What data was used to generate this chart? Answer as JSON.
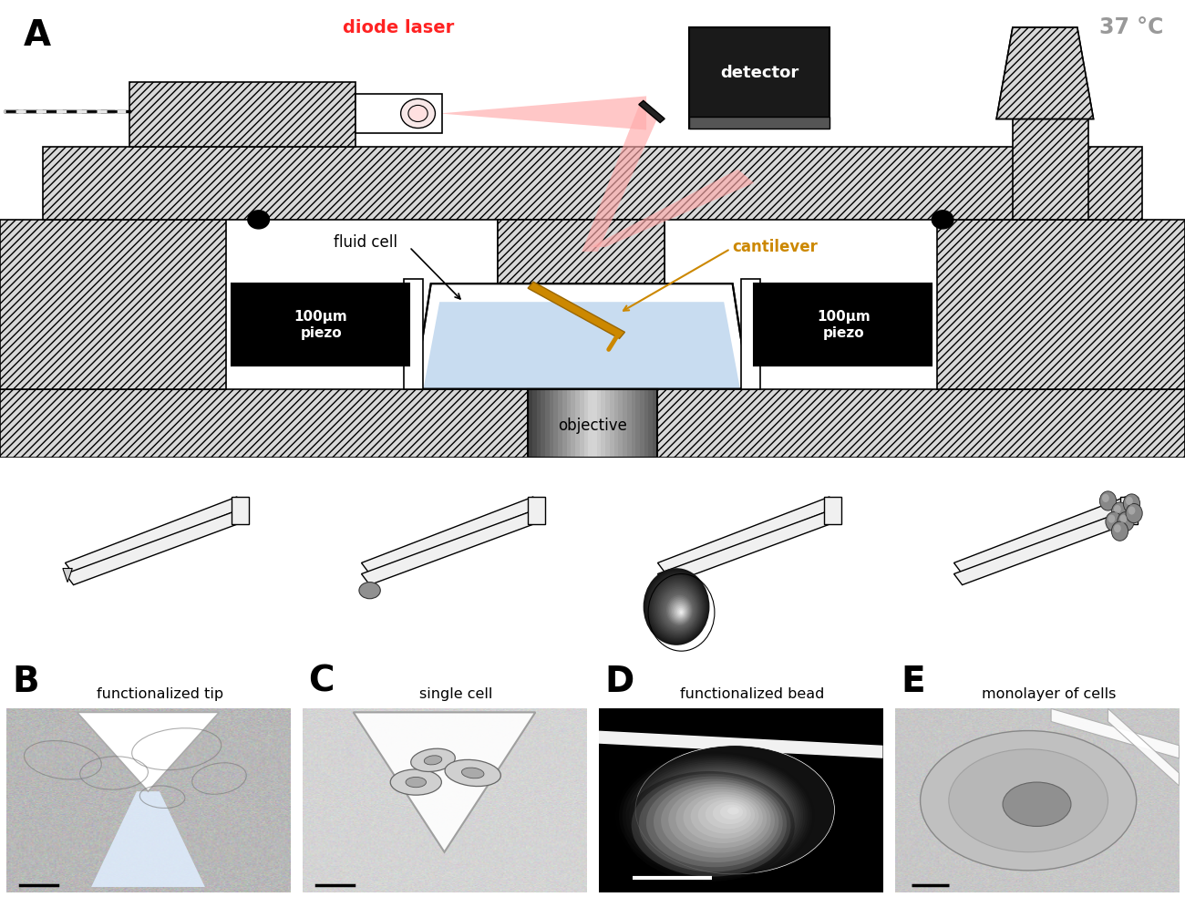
{
  "background_color": "#ffffff",
  "panel_A_bg": "#e8e8e8",
  "label_fontsize": 28,
  "text_diode_laser": "diode laser",
  "text_diode_laser_color": "#ff2222",
  "text_detector": "detector",
  "text_fluid_cell": "fluid cell",
  "text_cantilever": "cantilever",
  "text_cantilever_color": "#cc8800",
  "text_piezo_left": "100μm\npiezo",
  "text_piezo_right": "100μm\npiezo",
  "text_objective": "objective",
  "text_temp": "37 °C",
  "text_temp_color": "#999999",
  "text_func_tip": "functionalized tip",
  "text_single_cell": "single cell",
  "text_func_bead": "functionalized bead",
  "text_monolayer": "monolayer of cells",
  "fluid_color": "#c8dcf0",
  "hatch_pattern": "////",
  "hatch_fc": "#d8d8d8",
  "hatch_ec": "#000000"
}
